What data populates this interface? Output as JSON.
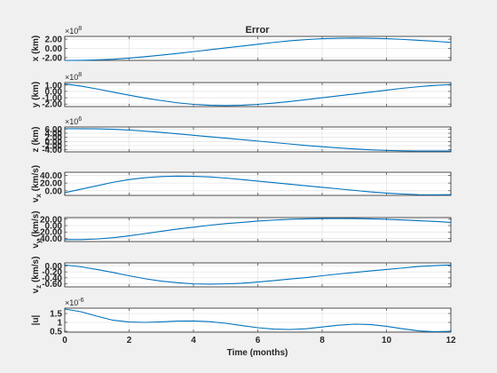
{
  "chart_data": {
    "type": "line",
    "title": "Error",
    "xlabel": "Time (months)",
    "xlim": [
      0,
      12
    ],
    "xticks": [
      0,
      2,
      4,
      6,
      8,
      10,
      12
    ],
    "color": "#0072bd",
    "grid": true,
    "subplots": [
      {
        "id": "x",
        "ylabel": "x (km)",
        "exponent": "8",
        "ylim": [
          -2.6,
          2.6
        ],
        "yticks": [
          {
            "v": 2,
            "label": "2.00"
          },
          {
            "v": 0,
            "label": "0.00"
          },
          {
            "v": -2,
            "label": "-2.00"
          }
        ],
        "x": [
          0,
          0.5,
          1,
          1.5,
          2,
          2.5,
          3,
          3.5,
          4,
          4.5,
          5,
          5.5,
          6,
          6.5,
          7,
          7.5,
          8,
          8.5,
          9,
          9.5,
          10,
          10.5,
          11,
          11.5,
          12
        ],
        "y": [
          -2.6,
          -2.58,
          -2.5,
          -2.35,
          -2.1,
          -1.8,
          -1.45,
          -1.1,
          -0.7,
          -0.3,
          0.1,
          0.5,
          0.9,
          1.3,
          1.65,
          1.9,
          2.1,
          2.2,
          2.25,
          2.2,
          2.1,
          1.95,
          1.75,
          1.55,
          1.3
        ]
      },
      {
        "id": "y",
        "ylabel": "y (km)",
        "exponent": "8",
        "ylim": [
          -2.4,
          1.4
        ],
        "yticks": [
          {
            "v": 1,
            "label": "1.00"
          },
          {
            "v": 0,
            "label": "0.00"
          },
          {
            "v": -1,
            "label": "-1.00"
          },
          {
            "v": -2,
            "label": "-2.00"
          }
        ],
        "x": [
          0,
          0.5,
          1,
          1.5,
          2,
          2.5,
          3,
          3.5,
          4,
          4.5,
          5,
          5.5,
          6,
          6.5,
          7,
          7.5,
          8,
          8.5,
          9,
          9.5,
          10,
          10.5,
          11,
          11.5,
          12
        ],
        "y": [
          1.2,
          0.85,
          0.4,
          -0.1,
          -0.6,
          -1.05,
          -1.45,
          -1.8,
          -2.05,
          -2.2,
          -2.25,
          -2.2,
          -2.05,
          -1.85,
          -1.6,
          -1.3,
          -1.0,
          -0.7,
          -0.4,
          -0.1,
          0.2,
          0.5,
          0.75,
          0.95,
          1.1
        ]
      },
      {
        "id": "z",
        "ylabel": "z (km)",
        "exponent": "6",
        "ylim": [
          -5,
          7
        ],
        "yticks": [
          {
            "v": 6,
            "label": "6.00"
          },
          {
            "v": 4,
            "label": "4.00"
          },
          {
            "v": 2,
            "label": "2.00"
          },
          {
            "v": 0,
            "label": "0.00"
          },
          {
            "v": -2,
            "label": "-2.00"
          },
          {
            "v": -4,
            "label": "-4.00"
          }
        ],
        "x": [
          0,
          0.5,
          1,
          1.5,
          2,
          2.5,
          3,
          3.5,
          4,
          4.5,
          5,
          5.5,
          6,
          6.5,
          7,
          7.5,
          8,
          8.5,
          9,
          9.5,
          10,
          10.5,
          11,
          11.5,
          12
        ],
        "y": [
          6.2,
          6.18,
          6.1,
          5.9,
          5.5,
          5.0,
          4.4,
          3.7,
          3.0,
          2.3,
          1.6,
          0.9,
          0.2,
          -0.5,
          -1.2,
          -1.9,
          -2.5,
          -3.1,
          -3.6,
          -4.0,
          -4.3,
          -4.5,
          -4.6,
          -4.62,
          -4.6
        ]
      },
      {
        "id": "vx",
        "ylabel": "v",
        "ylabel_sub": "x",
        "ylabel_unit": " (km/s)",
        "ylim": [
          -12,
          48
        ],
        "yticks": [
          {
            "v": 40,
            "label": "40.00"
          },
          {
            "v": 20,
            "label": "20.00"
          },
          {
            "v": 0,
            "label": "0.00"
          }
        ],
        "x": [
          0,
          0.5,
          1,
          1.5,
          2,
          2.5,
          3,
          3.5,
          4,
          4.5,
          5,
          5.5,
          6,
          6.5,
          7,
          7.5,
          8,
          8.5,
          9,
          9.5,
          10,
          10.5,
          11,
          11.5,
          12
        ],
        "y": [
          -5,
          4,
          13,
          22,
          29,
          34,
          37,
          38,
          37.5,
          36,
          33,
          29,
          25,
          21,
          17,
          13,
          9,
          5,
          1,
          -3,
          -6,
          -8.5,
          -10,
          -10.5,
          -10
        ]
      },
      {
        "id": "vy",
        "ylabel": "v",
        "ylabel_sub": "y",
        "ylabel_unit": " (km/s)",
        "ylim": [
          -50,
          25
        ],
        "yticks": [
          {
            "v": 20,
            "label": "20.00"
          },
          {
            "v": 0,
            "label": "0.00"
          },
          {
            "v": -20,
            "label": "-20.00"
          },
          {
            "v": -40,
            "label": "-40.00"
          }
        ],
        "x": [
          0,
          0.5,
          1,
          1.5,
          2,
          2.5,
          3,
          3.5,
          4,
          4.5,
          5,
          5.5,
          6,
          6.5,
          7,
          7.5,
          8,
          8.5,
          9,
          9.5,
          10,
          10.5,
          11,
          11.5,
          12
        ],
        "y": [
          -44,
          -44,
          -42,
          -38,
          -32,
          -25,
          -18,
          -11,
          -5,
          1,
          6,
          10,
          14,
          17,
          19.5,
          21,
          22,
          22.5,
          22,
          21,
          19.5,
          17.5,
          15,
          13,
          10
        ]
      },
      {
        "id": "vz",
        "ylabel": "v",
        "ylabel_sub": "z",
        "ylabel_unit": " (km/s)",
        "ylim": [
          -0.7,
          0.1
        ],
        "yticks": [
          {
            "v": 0,
            "label": "0.00"
          },
          {
            "v": -0.2,
            "label": "-0.20"
          },
          {
            "v": -0.4,
            "label": "-0.40"
          },
          {
            "v": -0.6,
            "label": "-0.60"
          }
        ],
        "x": [
          0,
          0.5,
          1,
          1.5,
          2,
          2.5,
          3,
          3.5,
          4,
          4.5,
          5,
          5.5,
          6,
          6.5,
          7,
          7.5,
          8,
          8.5,
          9,
          9.5,
          10,
          10.5,
          11,
          11.5,
          12
        ],
        "y": [
          0.03,
          -0.03,
          -0.12,
          -0.22,
          -0.33,
          -0.43,
          -0.51,
          -0.56,
          -0.6,
          -0.61,
          -0.6,
          -0.58,
          -0.54,
          -0.49,
          -0.44,
          -0.39,
          -0.33,
          -0.27,
          -0.22,
          -0.17,
          -0.12,
          -0.07,
          -0.02,
          0.01,
          0.03
        ]
      },
      {
        "id": "u",
        "ylabel": "|u|",
        "exponent": "-6",
        "ylim": [
          0.45,
          1.8
        ],
        "yticks": [
          {
            "v": 1.5,
            "label": "1.5"
          },
          {
            "v": 1,
            "label": "1"
          },
          {
            "v": 0.5,
            "label": "0.5"
          }
        ],
        "x": [
          0,
          0.5,
          1,
          1.5,
          2,
          2.5,
          3,
          3.5,
          4,
          4.5,
          5,
          5.5,
          6,
          6.5,
          7,
          7.5,
          8,
          8.5,
          9,
          9.5,
          10,
          10.5,
          11,
          11.5,
          12
        ],
        "y": [
          1.75,
          1.6,
          1.35,
          1.12,
          1.02,
          1.0,
          1.03,
          1.07,
          1.08,
          1.04,
          0.95,
          0.82,
          0.7,
          0.62,
          0.6,
          0.64,
          0.74,
          0.84,
          0.9,
          0.88,
          0.78,
          0.64,
          0.52,
          0.47,
          0.5
        ]
      }
    ]
  }
}
